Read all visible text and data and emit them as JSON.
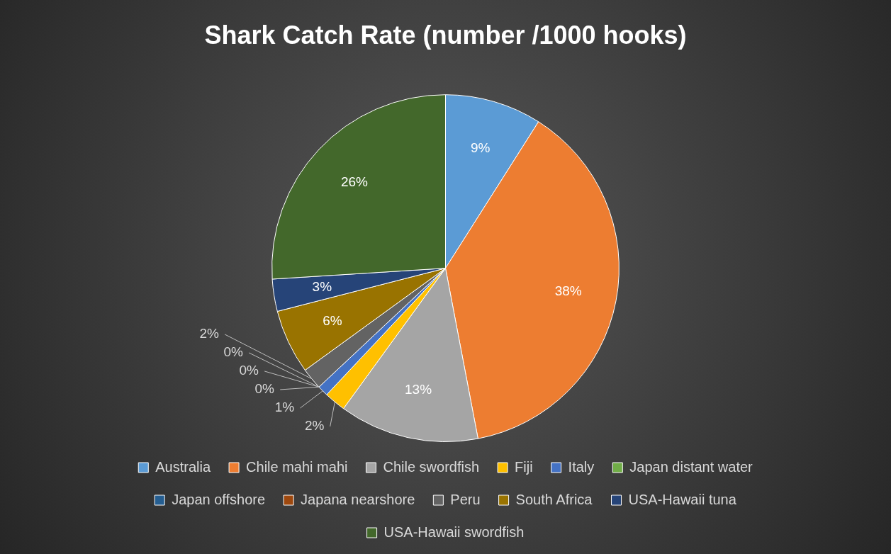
{
  "chart_data": {
    "type": "pie",
    "title": "Shark Catch Rate (number /1000 hooks)",
    "categories": [
      "Australia",
      "Chile mahi mahi",
      "Chile swordfish",
      "Fiji",
      "Italy",
      "Japan distant water",
      "Japan offshore",
      "Japana nearshore",
      "Peru",
      "South Africa",
      "USA-Hawaii tuna",
      "USA-Hawaii swordfish"
    ],
    "values": [
      9,
      38,
      13,
      2,
      1,
      0,
      0,
      0,
      2,
      6,
      3,
      26
    ],
    "value_labels": [
      "9%",
      "38%",
      "13%",
      "2%",
      "1%",
      "0%",
      "0%",
      "0%",
      "2%",
      "6%",
      "3%",
      "26%"
    ],
    "colors": [
      "#5b9bd5",
      "#ed7d31",
      "#a5a5a5",
      "#ffc000",
      "#4472c4",
      "#70ad47",
      "#255e91",
      "#9e480e",
      "#636363",
      "#997300",
      "#264478",
      "#43682b"
    ],
    "legend": "bottom"
  }
}
